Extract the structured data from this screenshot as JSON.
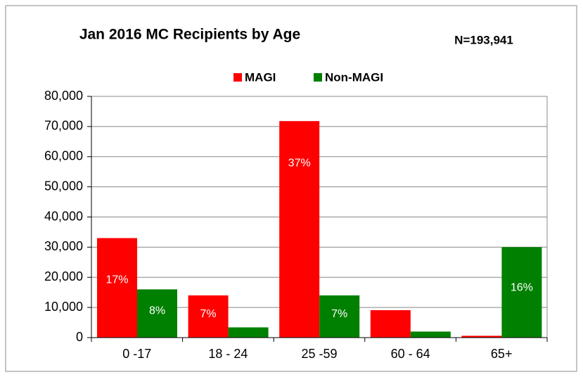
{
  "chart_data": {
    "type": "bar",
    "title": "Jan 2016 MC Recipients by Age",
    "subtitle": "N=193,941",
    "categories": [
      "0 -17",
      "18 - 24",
      "25 -59",
      "60 - 64",
      "65+"
    ],
    "series": [
      {
        "name": "MAGI",
        "color": "#ff0000",
        "values": [
          33000,
          14000,
          71800,
          9100,
          600
        ],
        "bar_labels": [
          "17%",
          "7%",
          "37%",
          null,
          null
        ]
      },
      {
        "name": "Non-MAGI",
        "color": "#008000",
        "values": [
          16000,
          3400,
          14000,
          2000,
          30000
        ],
        "bar_labels": [
          "8%",
          null,
          "7%",
          null,
          "16%"
        ]
      }
    ],
    "ylim": [
      0,
      80000
    ],
    "yticks": [
      0,
      {
        "value": 10000,
        "label": "10,000"
      },
      {
        "value": 20000,
        "label": "20,000"
      },
      {
        "value": 30000,
        "label": "30,000"
      },
      {
        "value": 40000,
        "label": "40,000"
      },
      {
        "value": 50000,
        "label": "50,000"
      },
      {
        "value": 60000,
        "label": "60,000"
      },
      {
        "value": 70000,
        "label": "70,000"
      },
      {
        "value": 80000,
        "label": "80,000"
      }
    ],
    "grid": true,
    "legend": "top"
  }
}
